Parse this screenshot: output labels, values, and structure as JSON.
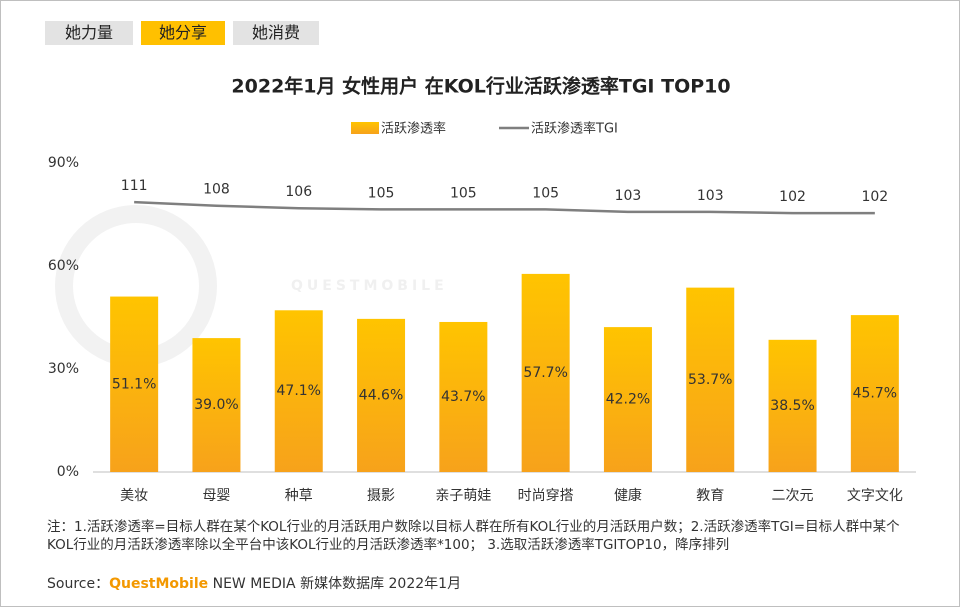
{
  "tabs": [
    "她力量",
    "她分享",
    "她消费"
  ],
  "chart_data": {
    "type": "bar",
    "title": "2022年1月 女性用户 在KOL行业活跃渗透率TGI TOP10",
    "watermark": "QUESTMOBILE",
    "categories": [
      "美妆",
      "母婴",
      "种草",
      "摄影",
      "亲子萌娃",
      "时尚穿搭",
      "健康",
      "教育",
      "二次元",
      "文字文化"
    ],
    "series": [
      {
        "name": "活跃渗透率",
        "type": "bar",
        "color": "#FFC000",
        "values": [
          51.1,
          39.0,
          47.1,
          44.6,
          43.7,
          57.7,
          42.2,
          53.7,
          38.5,
          45.7
        ],
        "value_labels": [
          "51.1%",
          "39.0%",
          "47.1%",
          "44.6%",
          "43.7%",
          "57.7%",
          "42.2%",
          "53.7%",
          "38.5%",
          "45.7%"
        ]
      },
      {
        "name": "活跃渗透率TGI",
        "type": "line",
        "color": "#7f7f7f",
        "axis": "y2",
        "values": [
          111,
          108,
          106,
          105,
          105,
          105,
          103,
          103,
          102,
          102
        ]
      }
    ],
    "ylim": [
      0,
      90
    ],
    "yticks": [
      {
        "value": 0,
        "label": "0%"
      },
      {
        "value": 30,
        "label": "30%"
      },
      {
        "value": 60,
        "label": "60%"
      },
      {
        "value": 90,
        "label": "90%"
      }
    ],
    "y2lim": [
      -110,
      143
    ],
    "grid": false,
    "legend": "top"
  },
  "note": "注：1.活跃渗透率=目标人群在某个KOL行业的月活跃用户数除以目标人群在所有KOL行业的月活跃用户数；2.活跃渗透率TGI=目标人群中某个KOL行业的月活跃渗透率除以全平台中该KOL行业的月活跃渗透率*100； 3.选取活跃渗透率TGITOP10，降序排列",
  "source": {
    "label": "Source：",
    "brand": "QuestMobile",
    "text": " NEW MEDIA 新媒体数据库 2022年1月"
  }
}
